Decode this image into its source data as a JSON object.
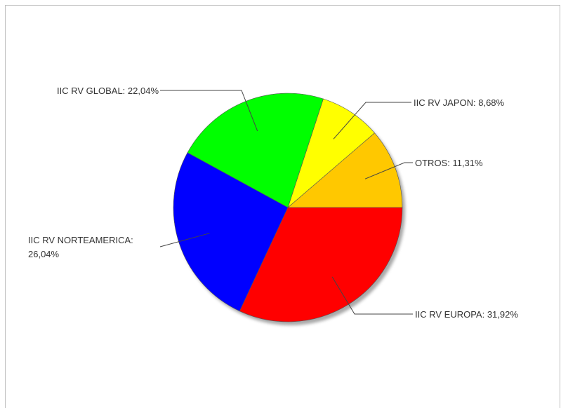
{
  "chart_data": {
    "type": "pie",
    "title": "",
    "start_angle_deg": 0,
    "direction": "counterclockwise",
    "slices": [
      {
        "label": "OTROS",
        "value": 11.31,
        "display": "OTROS: 11,31%",
        "color": "#FFC800"
      },
      {
        "label": "IIC RV JAPON",
        "value": 8.68,
        "display": "IIC RV JAPON: 8,68%",
        "color": "#FFFF00"
      },
      {
        "label": "IIC RV GLOBAL",
        "value": 22.04,
        "display": "IIC RV GLOBAL: 22,04%",
        "color": "#00FF00"
      },
      {
        "label": "IIC RV NORTEAMERICA",
        "value": 26.04,
        "display_lines": [
          "IIC RV NORTEAMERICA:",
          "26,04%"
        ],
        "color": "#0000FF"
      },
      {
        "label": "IIC RV EUROPA",
        "value": 31.92,
        "display": "IIC RV EUROPA: 31,92%",
        "color": "#FF0000"
      }
    ]
  }
}
